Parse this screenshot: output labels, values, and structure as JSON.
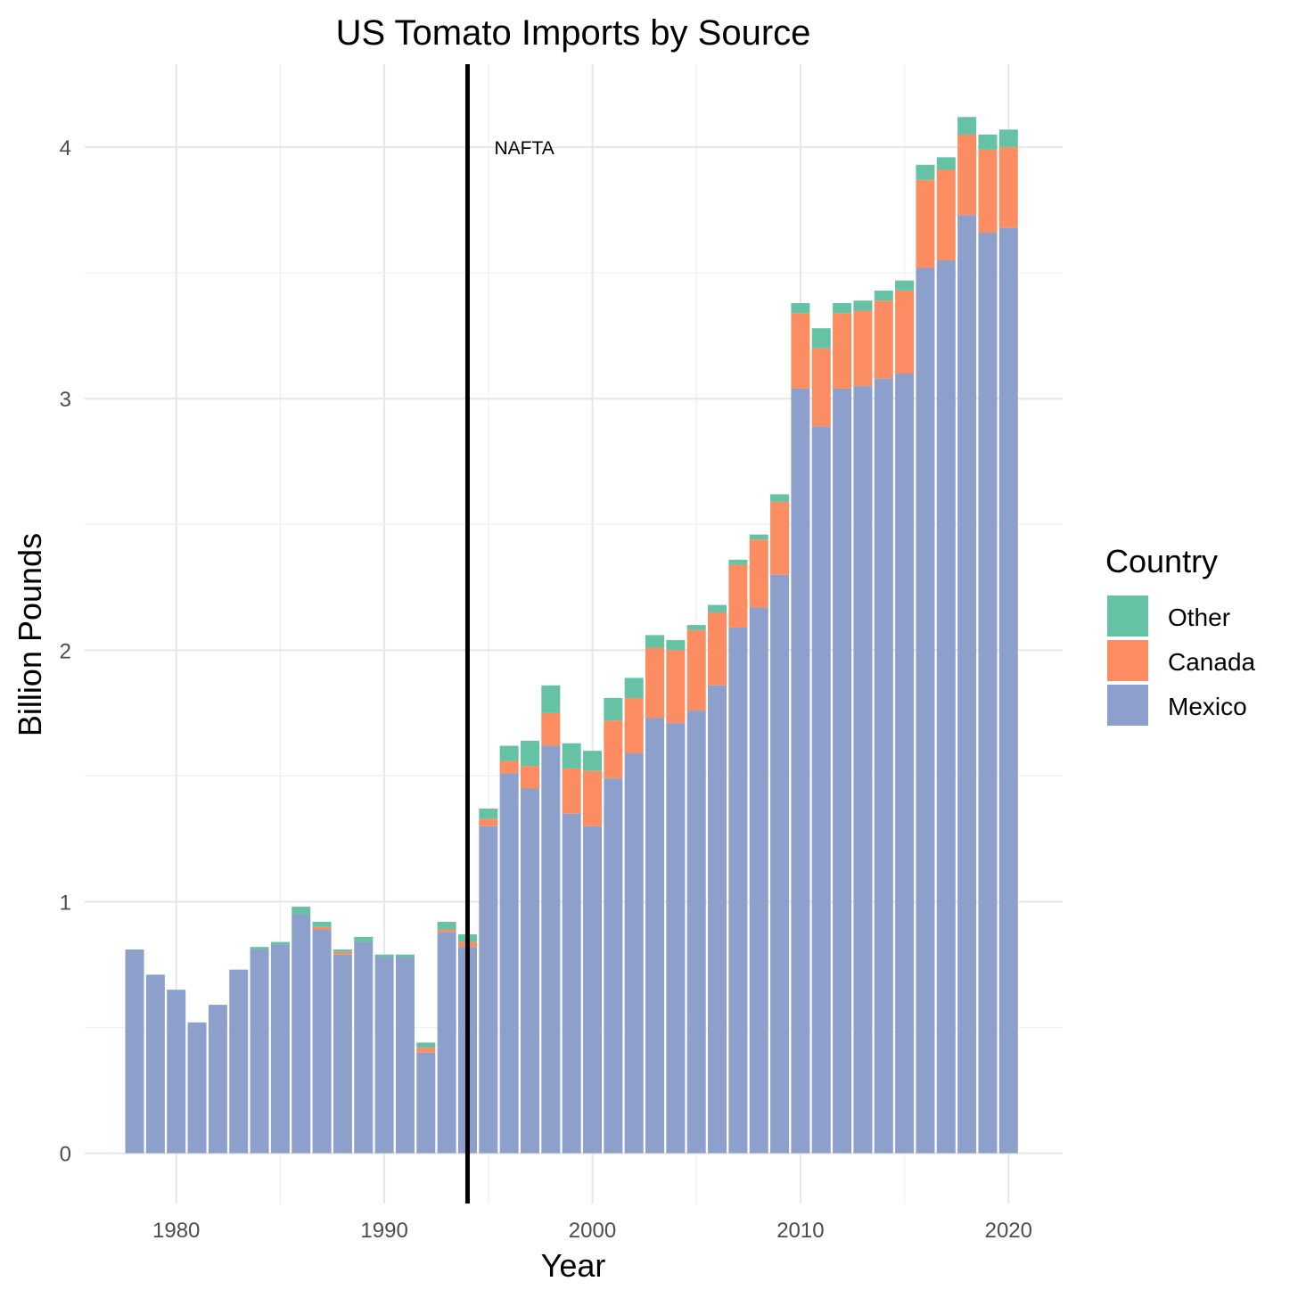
{
  "chart_data": {
    "type": "bar",
    "stacked": true,
    "title": "US Tomato Imports by Source",
    "xlabel": "Year",
    "ylabel": "Billion Pounds",
    "x": [
      1978,
      1979,
      1980,
      1981,
      1982,
      1983,
      1984,
      1985,
      1986,
      1987,
      1988,
      1989,
      1990,
      1991,
      1992,
      1993,
      1994,
      1995,
      1996,
      1997,
      1998,
      1999,
      2000,
      2001,
      2002,
      2003,
      2004,
      2005,
      2006,
      2007,
      2008,
      2009,
      2010,
      2011,
      2012,
      2013,
      2014,
      2015,
      2016,
      2017,
      2018,
      2019,
      2020
    ],
    "series": [
      {
        "name": "Mexico",
        "color": "#8da0cb",
        "values": [
          0.81,
          0.71,
          0.65,
          0.52,
          0.59,
          0.73,
          0.81,
          0.83,
          0.95,
          0.89,
          0.79,
          0.84,
          0.78,
          0.78,
          0.4,
          0.88,
          0.82,
          1.3,
          1.51,
          1.45,
          1.62,
          1.35,
          1.3,
          1.49,
          1.59,
          1.73,
          1.71,
          1.76,
          1.86,
          2.09,
          2.17,
          2.3,
          3.04,
          2.89,
          3.04,
          3.05,
          3.08,
          3.1,
          3.52,
          3.55,
          3.73,
          3.66,
          3.68
        ]
      },
      {
        "name": "Canada",
        "color": "#fc8d62",
        "values": [
          0,
          0,
          0,
          0,
          0,
          0,
          0,
          0,
          0,
          0.01,
          0.01,
          0,
          0,
          0,
          0.02,
          0.01,
          0.02,
          0.03,
          0.05,
          0.09,
          0.13,
          0.18,
          0.22,
          0.23,
          0.22,
          0.28,
          0.29,
          0.32,
          0.29,
          0.25,
          0.27,
          0.29,
          0.3,
          0.31,
          0.3,
          0.3,
          0.31,
          0.33,
          0.35,
          0.36,
          0.32,
          0.33,
          0.32
        ]
      },
      {
        "name": "Other",
        "color": "#66c2a5",
        "values": [
          0,
          0,
          0,
          0,
          0,
          0,
          0.01,
          0.01,
          0.03,
          0.02,
          0.01,
          0.02,
          0.01,
          0.01,
          0.02,
          0.03,
          0.03,
          0.04,
          0.06,
          0.1,
          0.11,
          0.1,
          0.08,
          0.09,
          0.08,
          0.05,
          0.04,
          0.02,
          0.03,
          0.02,
          0.02,
          0.03,
          0.04,
          0.08,
          0.04,
          0.04,
          0.04,
          0.04,
          0.06,
          0.05,
          0.07,
          0.06,
          0.07
        ]
      }
    ],
    "xticks": [
      1980,
      1990,
      2000,
      2010,
      2020
    ],
    "yticks": [
      0,
      1,
      2,
      3,
      4
    ],
    "xlim": [
      1975.6,
      2022.6
    ],
    "ylim": [
      -0.2,
      4.33
    ],
    "grid": true,
    "vline": {
      "x": 1994,
      "label": "NAFTA",
      "label_y": 4.0
    },
    "legend": {
      "title": "Country",
      "position": "right",
      "order": [
        "Other",
        "Canada",
        "Mexico"
      ]
    }
  }
}
